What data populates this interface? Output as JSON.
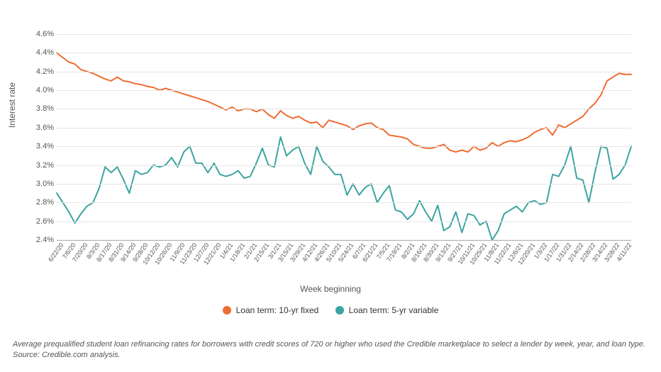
{
  "chart": {
    "type": "line",
    "y_axis_label": "Interest rate",
    "x_axis_label": "Week beginning",
    "background_color": "#ffffff",
    "grid_color": "#e5e5e5",
    "axis_color": "#aaaaaa",
    "text_color": "#555555",
    "label_fontsize": 12,
    "tick_fontsize": 11,
    "xtick_fontsize": 9,
    "y_min": 2.4,
    "y_max": 4.6,
    "y_tick_step": 0.2,
    "y_tick_format_suffix": "%",
    "y_tick_format_decimals": 1,
    "line_width": 2,
    "x_labels": [
      "6/22/20",
      "7/6/20",
      "7/20/20",
      "8/3/20",
      "8/17/20",
      "8/31/20",
      "9/14/20",
      "9/28/20",
      "10/12/20",
      "10/26/20",
      "11/9/20",
      "11/23/20",
      "12/7/20",
      "12/21/20",
      "1/4/21",
      "1/18/21",
      "2/1/21",
      "2/15/21",
      "3/1/21",
      "3/15/21",
      "3/29/21",
      "4/12/21",
      "4/26/21",
      "5/10/21",
      "5/24/21",
      "6/7/21",
      "6/21/21",
      "7/5/21",
      "7/19/21",
      "8/2/21",
      "8/16/21",
      "8/30/21",
      "9/13/21",
      "9/27/21",
      "10/11/21",
      "10/25/21",
      "11/8/21",
      "11/22/21",
      "12/6/21",
      "12/20/21",
      "1/3/22",
      "1/17/22",
      "1/31/22",
      "2/14/22",
      "2/28/22",
      "3/14/22",
      "3/28/22",
      "4/11/22"
    ],
    "series": [
      {
        "name": "Loan term: 10-yr fixed",
        "color": "#ef6c33",
        "values": [
          4.4,
          4.35,
          4.3,
          4.28,
          4.22,
          4.2,
          4.18,
          4.15,
          4.12,
          4.1,
          4.14,
          4.1,
          4.09,
          4.07,
          4.06,
          4.04,
          4.03,
          4.0,
          4.02,
          4.0,
          3.98,
          3.96,
          3.94,
          3.92,
          3.9,
          3.88,
          3.85,
          3.82,
          3.79,
          3.82,
          3.78,
          3.8,
          3.8,
          3.77,
          3.8,
          3.74,
          3.7,
          3.78,
          3.73,
          3.7,
          3.72,
          3.68,
          3.65,
          3.66,
          3.6,
          3.68,
          3.66,
          3.64,
          3.62,
          3.58,
          3.62,
          3.64,
          3.65,
          3.6,
          3.58,
          3.52,
          3.51,
          3.5,
          3.48,
          3.42,
          3.4,
          3.38,
          3.38,
          3.4,
          3.42,
          3.36,
          3.34,
          3.36,
          3.34,
          3.4,
          3.36,
          3.38,
          3.44,
          3.4,
          3.44,
          3.46,
          3.45,
          3.47,
          3.5,
          3.55,
          3.58,
          3.6,
          3.52,
          3.63,
          3.6,
          3.64,
          3.68,
          3.72,
          3.8,
          3.86,
          3.95,
          4.1,
          4.14,
          4.18,
          4.17,
          4.17
        ]
      },
      {
        "name": "Loan term: 5-yr variable",
        "color": "#3ba4a0",
        "values": [
          2.9,
          2.8,
          2.7,
          2.58,
          2.68,
          2.76,
          2.8,
          2.95,
          3.18,
          3.12,
          3.18,
          3.05,
          2.9,
          3.14,
          3.1,
          3.12,
          3.2,
          3.18,
          3.2,
          3.28,
          3.18,
          3.34,
          3.4,
          3.22,
          3.22,
          3.12,
          3.22,
          3.1,
          3.08,
          3.1,
          3.14,
          3.06,
          3.08,
          3.22,
          3.38,
          3.2,
          3.18,
          3.5,
          3.3,
          3.36,
          3.4,
          3.22,
          3.1,
          3.4,
          3.24,
          3.18,
          3.1,
          3.1,
          2.88,
          3.0,
          2.88,
          2.96,
          3.0,
          2.8,
          2.9,
          2.98,
          2.72,
          2.7,
          2.62,
          2.68,
          2.82,
          2.7,
          2.6,
          2.77,
          2.5,
          2.54,
          2.7,
          2.48,
          2.68,
          2.66,
          2.56,
          2.6,
          2.4,
          2.5,
          2.68,
          2.72,
          2.76,
          2.7,
          2.8,
          2.82,
          2.78,
          2.8,
          3.1,
          3.08,
          3.2,
          3.4,
          3.06,
          3.04,
          2.8,
          3.12,
          3.4,
          3.38,
          3.05,
          3.1,
          3.2,
          3.4
        ]
      }
    ],
    "caption": "Average prequalified student loan refinancing rates for borrowers with credit scores of 720 or higher who used the Credible marketplace to select a lender by week, year, and loan type. Source: Credible.com analysis."
  },
  "legend": {
    "items": [
      {
        "label": "Loan term: 10-yr fixed",
        "color": "#ef6c33"
      },
      {
        "label": "Loan term: 5-yr variable",
        "color": "#3ba4a0"
      }
    ]
  }
}
